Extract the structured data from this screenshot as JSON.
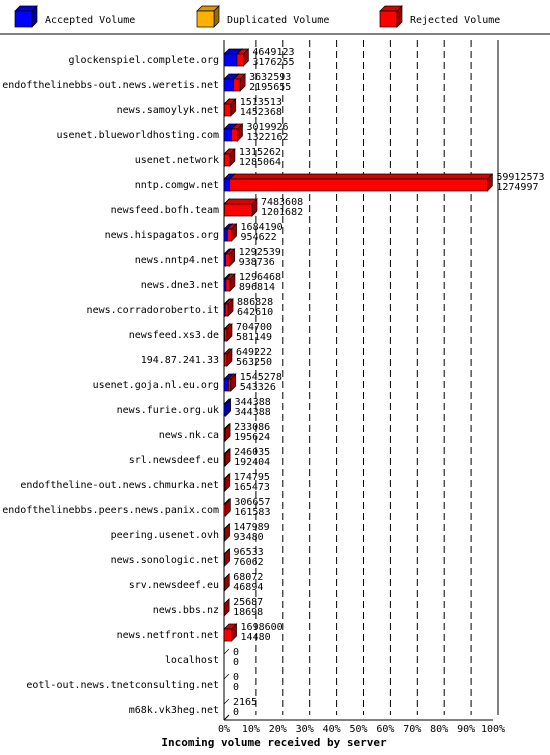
{
  "legend": [
    {
      "label": "Accepted Volume",
      "color": "#0000ff"
    },
    {
      "label": "Duplicated Volume",
      "color": "#ffb000"
    },
    {
      "label": "Rejected Volume",
      "color": "#ff0000"
    }
  ],
  "chart_data": {
    "type": "bar",
    "orientation": "horizontal",
    "stacked": true,
    "title": "Incoming volume received by server",
    "xlim": [
      0,
      100
    ],
    "x_ticks": [
      "0%",
      "10%",
      "20%",
      "30%",
      "40%",
      "50%",
      "60%",
      "70%",
      "80%",
      "90%",
      "100%"
    ],
    "legend_position": "top",
    "colors": {
      "accepted": "#0000ff",
      "duplicated": "#ffb000",
      "rejected": "#ff0000"
    },
    "scale_max": 61187570,
    "rows": [
      {
        "server": "glockenspiel.complete.org",
        "total": "4649123",
        "second": "3176255",
        "accepted_pct": 4.8,
        "rejected_pct": 2.4
      },
      {
        "server": "endofthelinebbs-out.news.weretis.net",
        "total": "3632593",
        "second": "2195655",
        "accepted_pct": 3.6,
        "rejected_pct": 2.4
      },
      {
        "server": "news.samoylyk.net",
        "total": "1513513",
        "second": "1452368",
        "accepted_pct": 0.1,
        "rejected_pct": 2.4
      },
      {
        "server": "usenet.blueworldhosting.com",
        "total": "3019926",
        "second": "1322162",
        "accepted_pct": 2.8,
        "rejected_pct": 2.2
      },
      {
        "server": "usenet.network",
        "total": "1315262",
        "second": "1285064",
        "accepted_pct": 0.1,
        "rejected_pct": 2.1
      },
      {
        "server": "nntp.comgw.net",
        "total": "59912573",
        "second": "1274997",
        "accepted_pct": 2.1,
        "rejected_pct": 95.8
      },
      {
        "server": "newsfeed.bofh.team",
        "total": "7483608",
        "second": "1201682",
        "accepted_pct": 0.1,
        "rejected_pct": 10.3
      },
      {
        "server": "news.hispagatos.org",
        "total": "1684190",
        "second": "954622",
        "accepted_pct": 1.2,
        "rejected_pct": 1.6
      },
      {
        "server": "news.nntp4.net",
        "total": "1292539",
        "second": "938736",
        "accepted_pct": 0.6,
        "rejected_pct": 1.5
      },
      {
        "server": "news.dne3.net",
        "total": "1296468",
        "second": "896814",
        "accepted_pct": 0.7,
        "rejected_pct": 1.5
      },
      {
        "server": "news.corradoroberto.it",
        "total": "886828",
        "second": "642610",
        "accepted_pct": 0.4,
        "rejected_pct": 1.1
      },
      {
        "server": "newsfeed.xs3.de",
        "total": "704700",
        "second": "581149",
        "accepted_pct": 0.2,
        "rejected_pct": 0.9
      },
      {
        "server": "194.87.241.33",
        "total": "649222",
        "second": "563250",
        "accepted_pct": 0.1,
        "rejected_pct": 1.0
      },
      {
        "server": "usenet.goja.nl.eu.org",
        "total": "1545278",
        "second": "543326",
        "accepted_pct": 1.6,
        "rejected_pct": 0.9
      },
      {
        "server": "news.furie.org.uk",
        "total": "344388",
        "second": "344388",
        "accepted_pct": 0.6,
        "rejected_pct": 0.0
      },
      {
        "server": "news.nk.ca",
        "total": "233086",
        "second": "195624",
        "accepted_pct": 0.1,
        "rejected_pct": 0.3
      },
      {
        "server": "srl.newsdeef.eu",
        "total": "246035",
        "second": "192404",
        "accepted_pct": 0.1,
        "rejected_pct": 0.3
      },
      {
        "server": "endoftheline-out.news.chmurka.net",
        "total": "174795",
        "second": "165473",
        "accepted_pct": 0.0,
        "rejected_pct": 0.3
      },
      {
        "server": "endofthelinebbs.peers.news.panix.com",
        "total": "306657",
        "second": "161583",
        "accepted_pct": 0.0,
        "rejected_pct": 0.5
      },
      {
        "server": "peering.usenet.ovh",
        "total": "147989",
        "second": "93480",
        "accepted_pct": 0.0,
        "rejected_pct": 0.2
      },
      {
        "server": "news.sonologic.net",
        "total": "96533",
        "second": "76062",
        "accepted_pct": 0.0,
        "rejected_pct": 0.2
      },
      {
        "server": "srv.newsdeef.eu",
        "total": "68072",
        "second": "46894",
        "accepted_pct": 0.0,
        "rejected_pct": 0.1
      },
      {
        "server": "news.bbs.nz",
        "total": "25687",
        "second": "18698",
        "accepted_pct": 0.0,
        "rejected_pct": 0.04
      },
      {
        "server": "news.netfront.net",
        "total": "1698600",
        "second": "14480",
        "accepted_pct": 0.0,
        "rejected_pct": 2.8
      },
      {
        "server": "localhost",
        "total": "0",
        "second": "0",
        "accepted_pct": 0,
        "rejected_pct": 0
      },
      {
        "server": "eotl-out.news.tnetconsulting.net",
        "total": "0",
        "second": "0",
        "accepted_pct": 0,
        "rejected_pct": 0
      },
      {
        "server": "m68k.vk3heg.net",
        "total": "2165",
        "second": "0",
        "accepted_pct": 0.0,
        "rejected_pct": 0.0
      }
    ]
  }
}
